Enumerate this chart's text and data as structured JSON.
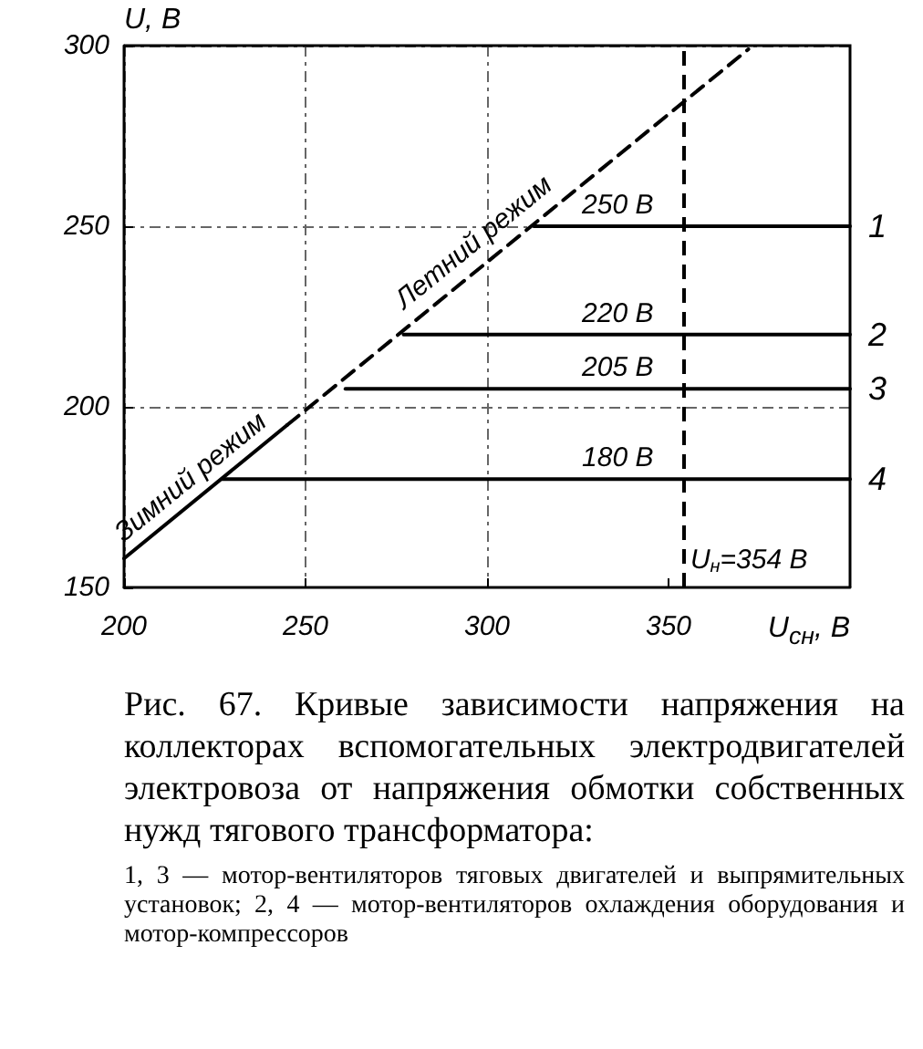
{
  "chart_data": {
    "type": "line",
    "title": "Рис. 67. Кривые зависимости напряжения на коллекторах вспомогательных электродвигателей электровоза от напряжения обмотки собственных нужд тягового трансформатора:",
    "xlabel": "U$_{сн}$, В",
    "ylabel": "U, В",
    "xlim": [
      200,
      400
    ],
    "xticks": [
      200,
      250,
      300,
      350
    ],
    "ylim": [
      150,
      300
    ],
    "yticks": [
      150,
      200,
      250,
      300
    ],
    "grid": true,
    "marker": "none",
    "series": [
      {
        "color": "#000000",
        "line_style": "solid",
        "x": [
          200,
          245
        ],
        "values": [
          158,
          195
        ]
      },
      {
        "color": "#000000",
        "line_style": "dashed",
        "x": [
          245,
          372
        ],
        "values": [
          195,
          299
        ]
      },
      {
        "name": "1",
        "color": "#000000",
        "line_style": "solid",
        "x": [
          313,
          400
        ],
        "values": [
          250,
          250
        ]
      },
      {
        "name": "2",
        "color": "#000000",
        "line_style": "solid",
        "x": [
          277,
          400
        ],
        "values": [
          220,
          220
        ]
      },
      {
        "name": "3",
        "color": "#000000",
        "line_style": "solid",
        "x": [
          261,
          400
        ],
        "values": [
          205,
          205
        ]
      },
      {
        "name": "4",
        "color": "#000000",
        "line_style": "solid",
        "x": [
          227,
          400
        ],
        "values": [
          180,
          180
        ]
      }
    ],
    "ref_lines": [
      {
        "axis": "x",
        "value": 354,
        "label": "U$_{н}$=354 В",
        "color": "#000000",
        "line_style": "dashed"
      }
    ],
    "annotations": [
      {
        "text": "Зимний режим",
        "x": 222,
        "y": 176
      },
      {
        "text": "Летний режим",
        "x": 300,
        "y": 241
      },
      {
        "text": "250 В",
        "x": 336,
        "y": 250
      },
      {
        "text": "220 В",
        "x": 336,
        "y": 220
      },
      {
        "text": "205 В",
        "x": 336,
        "y": 205
      },
      {
        "text": "180 В",
        "x": 336,
        "y": 180
      },
      "1, 3 — мотор-вентиляторов тяговых двигателей и выпрямительных установок; 2, 4 — мотор-вентиляторов охлаждения оборудования и мотор-компрессоров"
    ]
  }
}
